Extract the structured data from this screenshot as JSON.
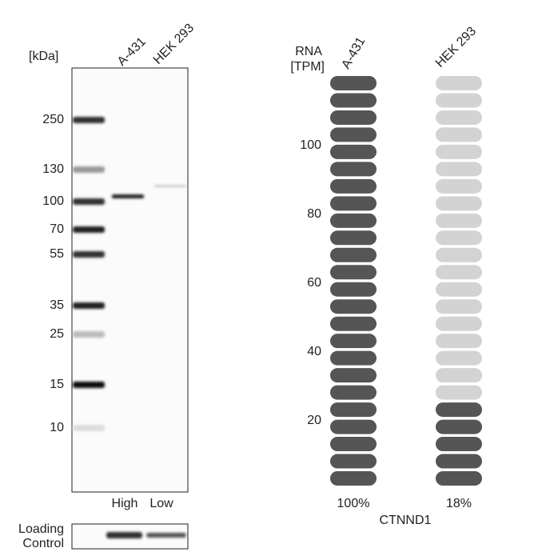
{
  "western_blot": {
    "kda_label": "[kDa]",
    "lanes": [
      "A-431",
      "HEK 293"
    ],
    "markers": [
      "250",
      "130",
      "100",
      "70",
      "55",
      "35",
      "25",
      "15",
      "10"
    ],
    "levels": [
      "High",
      "Low"
    ],
    "loading_control": [
      "Loading",
      "Control"
    ]
  },
  "rna": {
    "axis_label": [
      "RNA",
      "[TPM]"
    ],
    "samples": [
      "A-431",
      "HEK 293"
    ],
    "yticks": [
      20,
      40,
      60,
      80,
      100
    ],
    "total_pills": 24,
    "filled_pills": [
      24,
      5
    ],
    "percentages": [
      "100%",
      "18%"
    ],
    "gene": "CTNND1"
  }
}
